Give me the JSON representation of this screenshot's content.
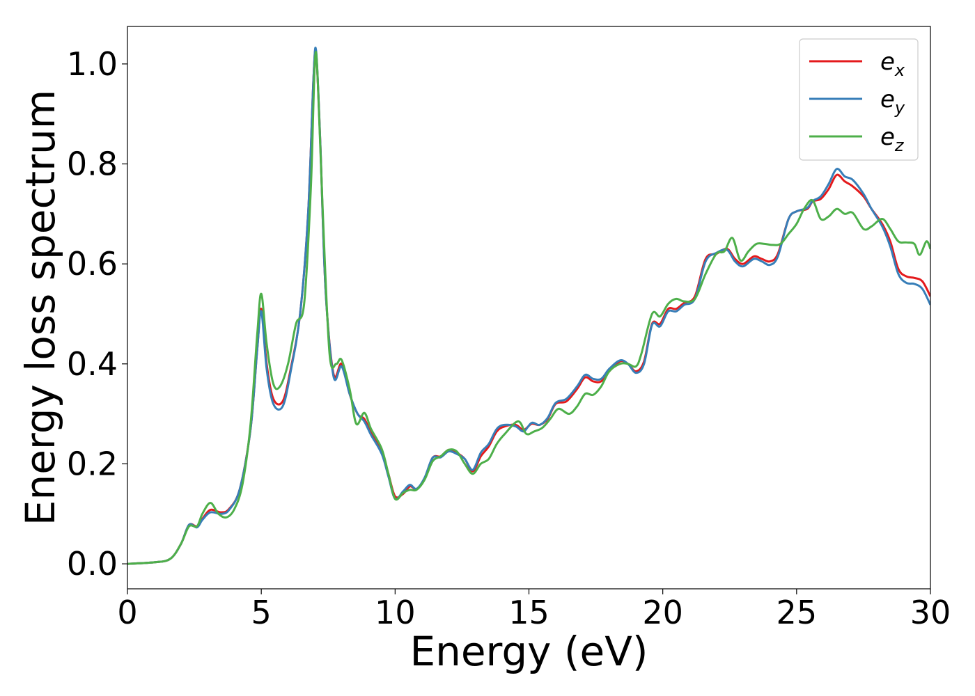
{
  "chart_data": {
    "type": "line",
    "title": "",
    "xlabel": "Energy (eV)",
    "ylabel": "Energy loss spectrum",
    "xlim": [
      0,
      30
    ],
    "ylim": [
      -0.05,
      1.075
    ],
    "xticks": [
      0,
      5,
      10,
      15,
      20,
      25,
      30
    ],
    "xtick_labels": [
      "0",
      "5",
      "10",
      "15",
      "20",
      "25",
      "30"
    ],
    "yticks": [
      0.0,
      0.2,
      0.4,
      0.6,
      0.8,
      1.0
    ],
    "ytick_labels": [
      "0.0",
      "0.2",
      "0.4",
      "0.6",
      "0.8",
      "1.0"
    ],
    "grid": false,
    "legend_position": "top-right",
    "series": [
      {
        "name": "e",
        "subscript": "x",
        "color": "#e41a1c",
        "points": [
          [
            0,
            0
          ],
          [
            1,
            0.003
          ],
          [
            1.6,
            0.01
          ],
          [
            2,
            0.04
          ],
          [
            2.3,
            0.078
          ],
          [
            2.6,
            0.075
          ],
          [
            2.8,
            0.09
          ],
          [
            3.1,
            0.108
          ],
          [
            3.5,
            0.103
          ],
          [
            3.8,
            0.11
          ],
          [
            4.2,
            0.15
          ],
          [
            4.6,
            0.27
          ],
          [
            4.85,
            0.43
          ],
          [
            5.0,
            0.51
          ],
          [
            5.2,
            0.4
          ],
          [
            5.45,
            0.33
          ],
          [
            5.8,
            0.325
          ],
          [
            6.1,
            0.39
          ],
          [
            6.45,
            0.5
          ],
          [
            6.75,
            0.7
          ],
          [
            6.95,
            0.97
          ],
          [
            7.05,
            1.02
          ],
          [
            7.2,
            0.85
          ],
          [
            7.4,
            0.55
          ],
          [
            7.7,
            0.38
          ],
          [
            8.0,
            0.4
          ],
          [
            8.3,
            0.34
          ],
          [
            8.6,
            0.3
          ],
          [
            8.85,
            0.29
          ],
          [
            9.1,
            0.262
          ],
          [
            9.5,
            0.225
          ],
          [
            9.75,
            0.18
          ],
          [
            10.0,
            0.135
          ],
          [
            10.3,
            0.14
          ],
          [
            10.55,
            0.155
          ],
          [
            10.8,
            0.15
          ],
          [
            11.1,
            0.17
          ],
          [
            11.4,
            0.212
          ],
          [
            11.7,
            0.215
          ],
          [
            12.0,
            0.228
          ],
          [
            12.3,
            0.222
          ],
          [
            12.6,
            0.21
          ],
          [
            12.9,
            0.185
          ],
          [
            13.2,
            0.215
          ],
          [
            13.5,
            0.235
          ],
          [
            13.8,
            0.265
          ],
          [
            14.1,
            0.275
          ],
          [
            14.5,
            0.278
          ],
          [
            14.8,
            0.268
          ],
          [
            15.1,
            0.28
          ],
          [
            15.4,
            0.278
          ],
          [
            15.7,
            0.29
          ],
          [
            16.0,
            0.32
          ],
          [
            16.4,
            0.325
          ],
          [
            16.8,
            0.35
          ],
          [
            17.1,
            0.373
          ],
          [
            17.4,
            0.365
          ],
          [
            17.7,
            0.365
          ],
          [
            18.0,
            0.385
          ],
          [
            18.4,
            0.405
          ],
          [
            18.7,
            0.4
          ],
          [
            19.0,
            0.385
          ],
          [
            19.3,
            0.405
          ],
          [
            19.6,
            0.48
          ],
          [
            19.9,
            0.48
          ],
          [
            20.2,
            0.51
          ],
          [
            20.5,
            0.51
          ],
          [
            20.8,
            0.522
          ],
          [
            21.2,
            0.535
          ],
          [
            21.6,
            0.61
          ],
          [
            22.0,
            0.62
          ],
          [
            22.4,
            0.63
          ],
          [
            22.7,
            0.61
          ],
          [
            23.0,
            0.6
          ],
          [
            23.4,
            0.615
          ],
          [
            23.7,
            0.61
          ],
          [
            24.0,
            0.605
          ],
          [
            24.3,
            0.62
          ],
          [
            24.7,
            0.69
          ],
          [
            25.0,
            0.705
          ],
          [
            25.4,
            0.71
          ],
          [
            25.6,
            0.725
          ],
          [
            25.9,
            0.73
          ],
          [
            26.2,
            0.75
          ],
          [
            26.5,
            0.778
          ],
          [
            26.8,
            0.765
          ],
          [
            27.1,
            0.755
          ],
          [
            27.5,
            0.735
          ],
          [
            27.8,
            0.71
          ],
          [
            28.2,
            0.68
          ],
          [
            28.5,
            0.645
          ],
          [
            28.8,
            0.59
          ],
          [
            29.1,
            0.575
          ],
          [
            29.4,
            0.572
          ],
          [
            29.7,
            0.565
          ],
          [
            30,
            0.535
          ]
        ]
      },
      {
        "name": "e",
        "subscript": "y",
        "color": "#377eb8",
        "points": [
          [
            0,
            0
          ],
          [
            1,
            0.003
          ],
          [
            1.6,
            0.01
          ],
          [
            2,
            0.04
          ],
          [
            2.3,
            0.078
          ],
          [
            2.6,
            0.073
          ],
          [
            2.8,
            0.088
          ],
          [
            3.1,
            0.103
          ],
          [
            3.5,
            0.1
          ],
          [
            3.8,
            0.108
          ],
          [
            4.2,
            0.15
          ],
          [
            4.6,
            0.27
          ],
          [
            4.85,
            0.43
          ],
          [
            5.0,
            0.505
          ],
          [
            5.2,
            0.39
          ],
          [
            5.45,
            0.32
          ],
          [
            5.8,
            0.315
          ],
          [
            6.1,
            0.385
          ],
          [
            6.45,
            0.5
          ],
          [
            6.75,
            0.7
          ],
          [
            6.95,
            0.97
          ],
          [
            7.05,
            1.025
          ],
          [
            7.2,
            0.85
          ],
          [
            7.4,
            0.55
          ],
          [
            7.7,
            0.375
          ],
          [
            8.0,
            0.395
          ],
          [
            8.3,
            0.34
          ],
          [
            8.6,
            0.3
          ],
          [
            8.85,
            0.285
          ],
          [
            9.1,
            0.258
          ],
          [
            9.5,
            0.22
          ],
          [
            9.75,
            0.175
          ],
          [
            10.0,
            0.13
          ],
          [
            10.3,
            0.145
          ],
          [
            10.55,
            0.158
          ],
          [
            10.8,
            0.15
          ],
          [
            11.1,
            0.172
          ],
          [
            11.4,
            0.212
          ],
          [
            11.7,
            0.213
          ],
          [
            12.0,
            0.225
          ],
          [
            12.3,
            0.22
          ],
          [
            12.6,
            0.21
          ],
          [
            12.9,
            0.188
          ],
          [
            13.2,
            0.222
          ],
          [
            13.5,
            0.24
          ],
          [
            13.8,
            0.27
          ],
          [
            14.1,
            0.278
          ],
          [
            14.5,
            0.275
          ],
          [
            14.8,
            0.265
          ],
          [
            15.1,
            0.282
          ],
          [
            15.4,
            0.278
          ],
          [
            15.7,
            0.292
          ],
          [
            16.0,
            0.322
          ],
          [
            16.4,
            0.33
          ],
          [
            16.8,
            0.355
          ],
          [
            17.1,
            0.378
          ],
          [
            17.4,
            0.37
          ],
          [
            17.7,
            0.37
          ],
          [
            18.0,
            0.39
          ],
          [
            18.4,
            0.407
          ],
          [
            18.7,
            0.4
          ],
          [
            19.0,
            0.382
          ],
          [
            19.3,
            0.4
          ],
          [
            19.6,
            0.478
          ],
          [
            19.9,
            0.475
          ],
          [
            20.2,
            0.505
          ],
          [
            20.5,
            0.505
          ],
          [
            20.8,
            0.518
          ],
          [
            21.2,
            0.53
          ],
          [
            21.6,
            0.605
          ],
          [
            22.0,
            0.622
          ],
          [
            22.4,
            0.628
          ],
          [
            22.7,
            0.605
          ],
          [
            23.0,
            0.595
          ],
          [
            23.4,
            0.61
          ],
          [
            23.7,
            0.605
          ],
          [
            24.0,
            0.598
          ],
          [
            24.3,
            0.615
          ],
          [
            24.7,
            0.69
          ],
          [
            25.0,
            0.705
          ],
          [
            25.4,
            0.712
          ],
          [
            25.6,
            0.726
          ],
          [
            25.9,
            0.735
          ],
          [
            26.2,
            0.76
          ],
          [
            26.5,
            0.79
          ],
          [
            26.8,
            0.775
          ],
          [
            27.1,
            0.768
          ],
          [
            27.5,
            0.74
          ],
          [
            27.8,
            0.71
          ],
          [
            28.2,
            0.675
          ],
          [
            28.5,
            0.635
          ],
          [
            28.8,
            0.58
          ],
          [
            29.1,
            0.562
          ],
          [
            29.4,
            0.56
          ],
          [
            29.7,
            0.55
          ],
          [
            30,
            0.518
          ]
        ]
      },
      {
        "name": "e",
        "subscript": "z",
        "color": "#4daf4a",
        "points": [
          [
            0,
            0
          ],
          [
            1,
            0.003
          ],
          [
            1.6,
            0.01
          ],
          [
            2,
            0.04
          ],
          [
            2.3,
            0.075
          ],
          [
            2.6,
            0.075
          ],
          [
            2.8,
            0.1
          ],
          [
            3.1,
            0.122
          ],
          [
            3.4,
            0.1
          ],
          [
            3.7,
            0.093
          ],
          [
            4.0,
            0.11
          ],
          [
            4.3,
            0.16
          ],
          [
            4.6,
            0.28
          ],
          [
            4.85,
            0.46
          ],
          [
            5.0,
            0.54
          ],
          [
            5.2,
            0.44
          ],
          [
            5.45,
            0.36
          ],
          [
            5.7,
            0.355
          ],
          [
            6.0,
            0.4
          ],
          [
            6.3,
            0.48
          ],
          [
            6.6,
            0.52
          ],
          [
            6.85,
            0.75
          ],
          [
            7.0,
            1.0
          ],
          [
            7.1,
            0.98
          ],
          [
            7.3,
            0.7
          ],
          [
            7.55,
            0.42
          ],
          [
            7.8,
            0.4
          ],
          [
            8.0,
            0.408
          ],
          [
            8.3,
            0.35
          ],
          [
            8.55,
            0.28
          ],
          [
            8.85,
            0.302
          ],
          [
            9.1,
            0.27
          ],
          [
            9.5,
            0.23
          ],
          [
            9.75,
            0.18
          ],
          [
            10.0,
            0.13
          ],
          [
            10.3,
            0.142
          ],
          [
            10.55,
            0.148
          ],
          [
            10.8,
            0.148
          ],
          [
            11.1,
            0.168
          ],
          [
            11.4,
            0.205
          ],
          [
            11.7,
            0.215
          ],
          [
            12.0,
            0.228
          ],
          [
            12.3,
            0.225
          ],
          [
            12.6,
            0.2
          ],
          [
            12.9,
            0.18
          ],
          [
            13.2,
            0.2
          ],
          [
            13.5,
            0.21
          ],
          [
            13.8,
            0.24
          ],
          [
            14.1,
            0.26
          ],
          [
            14.6,
            0.285
          ],
          [
            14.9,
            0.26
          ],
          [
            15.2,
            0.265
          ],
          [
            15.5,
            0.272
          ],
          [
            15.8,
            0.29
          ],
          [
            16.1,
            0.31
          ],
          [
            16.5,
            0.3
          ],
          [
            16.8,
            0.315
          ],
          [
            17.1,
            0.34
          ],
          [
            17.4,
            0.338
          ],
          [
            17.7,
            0.355
          ],
          [
            18.0,
            0.385
          ],
          [
            18.4,
            0.4
          ],
          [
            18.7,
            0.4
          ],
          [
            19.0,
            0.395
          ],
          [
            19.2,
            0.42
          ],
          [
            19.6,
            0.5
          ],
          [
            19.9,
            0.495
          ],
          [
            20.2,
            0.52
          ],
          [
            20.5,
            0.53
          ],
          [
            20.8,
            0.525
          ],
          [
            21.2,
            0.53
          ],
          [
            21.6,
            0.58
          ],
          [
            22.0,
            0.62
          ],
          [
            22.3,
            0.625
          ],
          [
            22.6,
            0.652
          ],
          [
            22.9,
            0.607
          ],
          [
            23.2,
            0.625
          ],
          [
            23.5,
            0.64
          ],
          [
            23.8,
            0.64
          ],
          [
            24.1,
            0.638
          ],
          [
            24.4,
            0.64
          ],
          [
            24.7,
            0.66
          ],
          [
            25.0,
            0.68
          ],
          [
            25.3,
            0.712
          ],
          [
            25.6,
            0.727
          ],
          [
            25.9,
            0.69
          ],
          [
            26.2,
            0.695
          ],
          [
            26.5,
            0.71
          ],
          [
            26.8,
            0.7
          ],
          [
            27.1,
            0.702
          ],
          [
            27.5,
            0.67
          ],
          [
            27.8,
            0.675
          ],
          [
            28.2,
            0.69
          ],
          [
            28.5,
            0.67
          ],
          [
            28.8,
            0.645
          ],
          [
            29.1,
            0.643
          ],
          [
            29.4,
            0.64
          ],
          [
            29.6,
            0.618
          ],
          [
            29.85,
            0.645
          ],
          [
            30,
            0.63
          ]
        ]
      }
    ]
  }
}
